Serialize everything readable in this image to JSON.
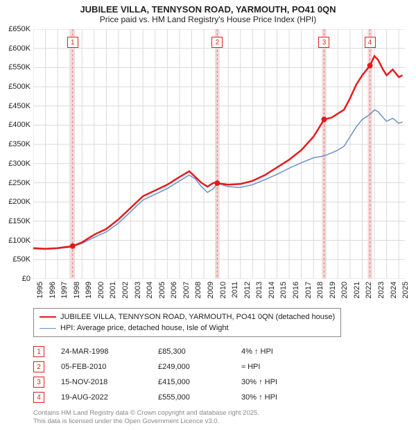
{
  "title": "JUBILEE VILLA, TENNYSON ROAD, YARMOUTH, PO41 0QN",
  "subtitle": "Price paid vs. HM Land Registry's House Price Index (HPI)",
  "chart": {
    "type": "line",
    "background_color": "#ffffff",
    "grid_color": "#d9d9d9",
    "plot_bg": "#ffffff",
    "x_domain": [
      1995,
      2025.5
    ],
    "y_domain": [
      0,
      650000
    ],
    "y_ticks": [
      0,
      50000,
      100000,
      150000,
      200000,
      250000,
      300000,
      350000,
      400000,
      450000,
      500000,
      550000,
      600000,
      650000
    ],
    "y_tick_labels": [
      "£0",
      "£50K",
      "£100K",
      "£150K",
      "£200K",
      "£250K",
      "£300K",
      "£350K",
      "£400K",
      "£450K",
      "£500K",
      "£550K",
      "£600K",
      "£650K"
    ],
    "x_ticks": [
      1995,
      1996,
      1997,
      1998,
      1999,
      2000,
      2001,
      2002,
      2003,
      2004,
      2005,
      2006,
      2007,
      2008,
      2009,
      2010,
      2011,
      2012,
      2013,
      2014,
      2015,
      2016,
      2017,
      2018,
      2019,
      2020,
      2021,
      2022,
      2023,
      2024,
      2025
    ],
    "title_fontsize": 13,
    "label_fontsize": 11,
    "series": {
      "property": {
        "label": "JUBILEE VILLA, TENNYSON ROAD, YARMOUTH, PO41 0QN (detached house)",
        "color": "#e31a1c",
        "line_width": 2.5,
        "points": [
          [
            1995.0,
            80000
          ],
          [
            1996.0,
            78000
          ],
          [
            1997.0,
            80000
          ],
          [
            1998.23,
            85300
          ],
          [
            1999.0,
            95000
          ],
          [
            2000.0,
            115000
          ],
          [
            2001.0,
            130000
          ],
          [
            2002.0,
            155000
          ],
          [
            2003.0,
            185000
          ],
          [
            2004.0,
            215000
          ],
          [
            2005.0,
            230000
          ],
          [
            2006.0,
            245000
          ],
          [
            2007.0,
            265000
          ],
          [
            2007.8,
            280000
          ],
          [
            2008.3,
            265000
          ],
          [
            2008.8,
            250000
          ],
          [
            2009.3,
            240000
          ],
          [
            2009.8,
            250000
          ],
          [
            2010.1,
            249000
          ],
          [
            2011.0,
            245000
          ],
          [
            2012.0,
            247000
          ],
          [
            2013.0,
            255000
          ],
          [
            2014.0,
            270000
          ],
          [
            2015.0,
            290000
          ],
          [
            2016.0,
            310000
          ],
          [
            2017.0,
            335000
          ],
          [
            2018.0,
            370000
          ],
          [
            2018.87,
            415000
          ],
          [
            2019.5,
            420000
          ],
          [
            2020.0,
            430000
          ],
          [
            2020.5,
            440000
          ],
          [
            2021.0,
            470000
          ],
          [
            2021.5,
            505000
          ],
          [
            2022.0,
            530000
          ],
          [
            2022.63,
            555000
          ],
          [
            2023.0,
            580000
          ],
          [
            2023.3,
            570000
          ],
          [
            2023.7,
            545000
          ],
          [
            2024.0,
            530000
          ],
          [
            2024.5,
            545000
          ],
          [
            2025.0,
            525000
          ],
          [
            2025.3,
            530000
          ]
        ]
      },
      "hpi": {
        "label": "HPI: Average price, detached house, Isle of Wight",
        "color": "#6b8fc9",
        "line_width": 1.5,
        "points": [
          [
            1995.0,
            78000
          ],
          [
            1996.0,
            77000
          ],
          [
            1997.0,
            79000
          ],
          [
            1998.0,
            82000
          ],
          [
            1999.0,
            92000
          ],
          [
            2000.0,
            108000
          ],
          [
            2001.0,
            122000
          ],
          [
            2002.0,
            145000
          ],
          [
            2003.0,
            175000
          ],
          [
            2004.0,
            205000
          ],
          [
            2005.0,
            220000
          ],
          [
            2006.0,
            235000
          ],
          [
            2007.0,
            255000
          ],
          [
            2007.8,
            270000
          ],
          [
            2008.3,
            260000
          ],
          [
            2008.8,
            240000
          ],
          [
            2009.3,
            225000
          ],
          [
            2009.8,
            235000
          ],
          [
            2010.1,
            249000
          ],
          [
            2011.0,
            240000
          ],
          [
            2012.0,
            238000
          ],
          [
            2013.0,
            245000
          ],
          [
            2014.0,
            258000
          ],
          [
            2015.0,
            272000
          ],
          [
            2016.0,
            288000
          ],
          [
            2017.0,
            302000
          ],
          [
            2018.0,
            315000
          ],
          [
            2018.87,
            320000
          ],
          [
            2019.5,
            328000
          ],
          [
            2020.0,
            335000
          ],
          [
            2020.5,
            345000
          ],
          [
            2021.0,
            370000
          ],
          [
            2021.5,
            395000
          ],
          [
            2022.0,
            415000
          ],
          [
            2022.63,
            428000
          ],
          [
            2023.0,
            440000
          ],
          [
            2023.3,
            435000
          ],
          [
            2023.7,
            420000
          ],
          [
            2024.0,
            410000
          ],
          [
            2024.5,
            418000
          ],
          [
            2025.0,
            405000
          ],
          [
            2025.3,
            408000
          ]
        ]
      }
    },
    "sale_markers": [
      {
        "n": "1",
        "x": 1998.23,
        "y": 85300,
        "color": "#e31a1c"
      },
      {
        "n": "2",
        "x": 2010.1,
        "y": 249000,
        "color": "#e31a1c"
      },
      {
        "n": "3",
        "x": 2018.87,
        "y": 415000,
        "color": "#e31a1c"
      },
      {
        "n": "4",
        "x": 2022.63,
        "y": 555000,
        "color": "#e31a1c"
      }
    ],
    "marker_top_y": 630000,
    "highlight_band_color": "#f5d6d6",
    "highlight_line_color": "#d97b7b",
    "highlight_half_width_years": 0.18
  },
  "legend": {
    "items": [
      {
        "color": "#e31a1c",
        "width": 2.5,
        "label_key": "chart.series.property.label"
      },
      {
        "color": "#6b8fc9",
        "width": 1.5,
        "label_key": "chart.series.hpi.label"
      }
    ]
  },
  "sales": [
    {
      "n": "1",
      "date": "24-MAR-1998",
      "price": "£85,300",
      "hpi": "4% ↑ HPI",
      "color": "#e31a1c"
    },
    {
      "n": "2",
      "date": "05-FEB-2010",
      "price": "£249,000",
      "hpi": "≈ HPI",
      "color": "#e31a1c"
    },
    {
      "n": "3",
      "date": "15-NOV-2018",
      "price": "£415,000",
      "hpi": "30% ↑ HPI",
      "color": "#e31a1c"
    },
    {
      "n": "4",
      "date": "19-AUG-2022",
      "price": "£555,000",
      "hpi": "30% ↑ HPI",
      "color": "#e31a1c"
    }
  ],
  "footer": {
    "line1": "Contains HM Land Registry data © Crown copyright and database right 2025.",
    "line2": "This data is licensed under the Open Government Licence v3.0."
  }
}
